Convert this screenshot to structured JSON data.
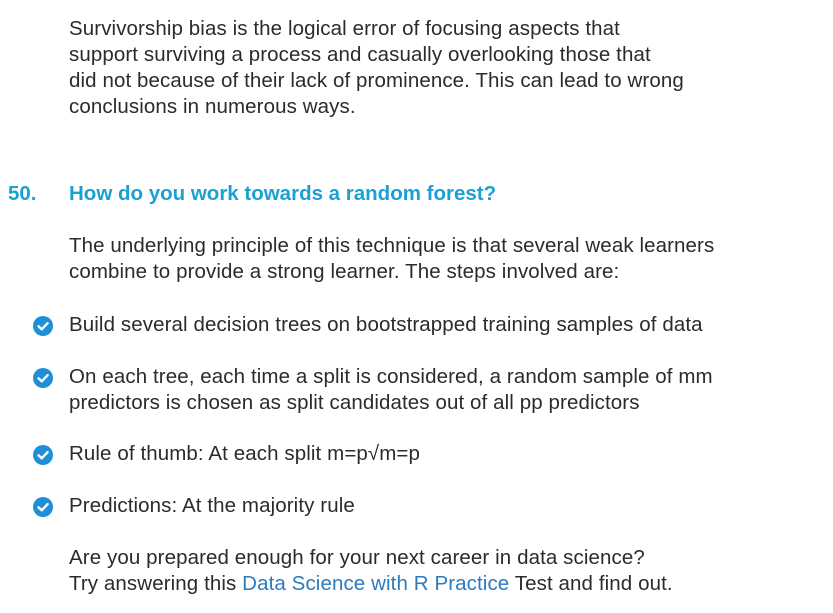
{
  "intro": {
    "lines": [
      "Survivorship bias is the logical error of focusing aspects that",
      "support surviving a process and casually overlooking those that",
      "did not because of their lack of prominence. This can lead to wrong",
      "conclusions in numerous ways."
    ]
  },
  "question": {
    "number": "50.",
    "title": "How do you work towards a random forest?"
  },
  "principle": {
    "lines": [
      "The underlying principle of this technique is that several weak learners",
      "combine to provide a strong learner. The steps involved are:"
    ]
  },
  "steps": [
    {
      "lines": [
        "Build several decision trees on bootstrapped training samples of data"
      ]
    },
    {
      "lines": [
        "On each tree, each time a split is considered, a random sample of mm",
        "predictors is chosen as split candidates out of all pp predictors"
      ]
    },
    {
      "lines": [
        "Rule of thumb: At each split m=p√m=p"
      ]
    },
    {
      "lines": [
        "Predictions: At the majority rule"
      ]
    }
  ],
  "outro": {
    "line1": "Are you prepared enough for your next career in data science?",
    "line2_before": "Try answering this ",
    "line2_link": "Data Science with R Practice",
    "line2_after": " Test and find out."
  },
  "colors": {
    "accent": "#1aa0d2",
    "bullet": "#1e8fd6",
    "link": "#2a7bc0",
    "text": "#2b2b2b"
  },
  "icons": {
    "bullet": "check-circle-icon"
  }
}
